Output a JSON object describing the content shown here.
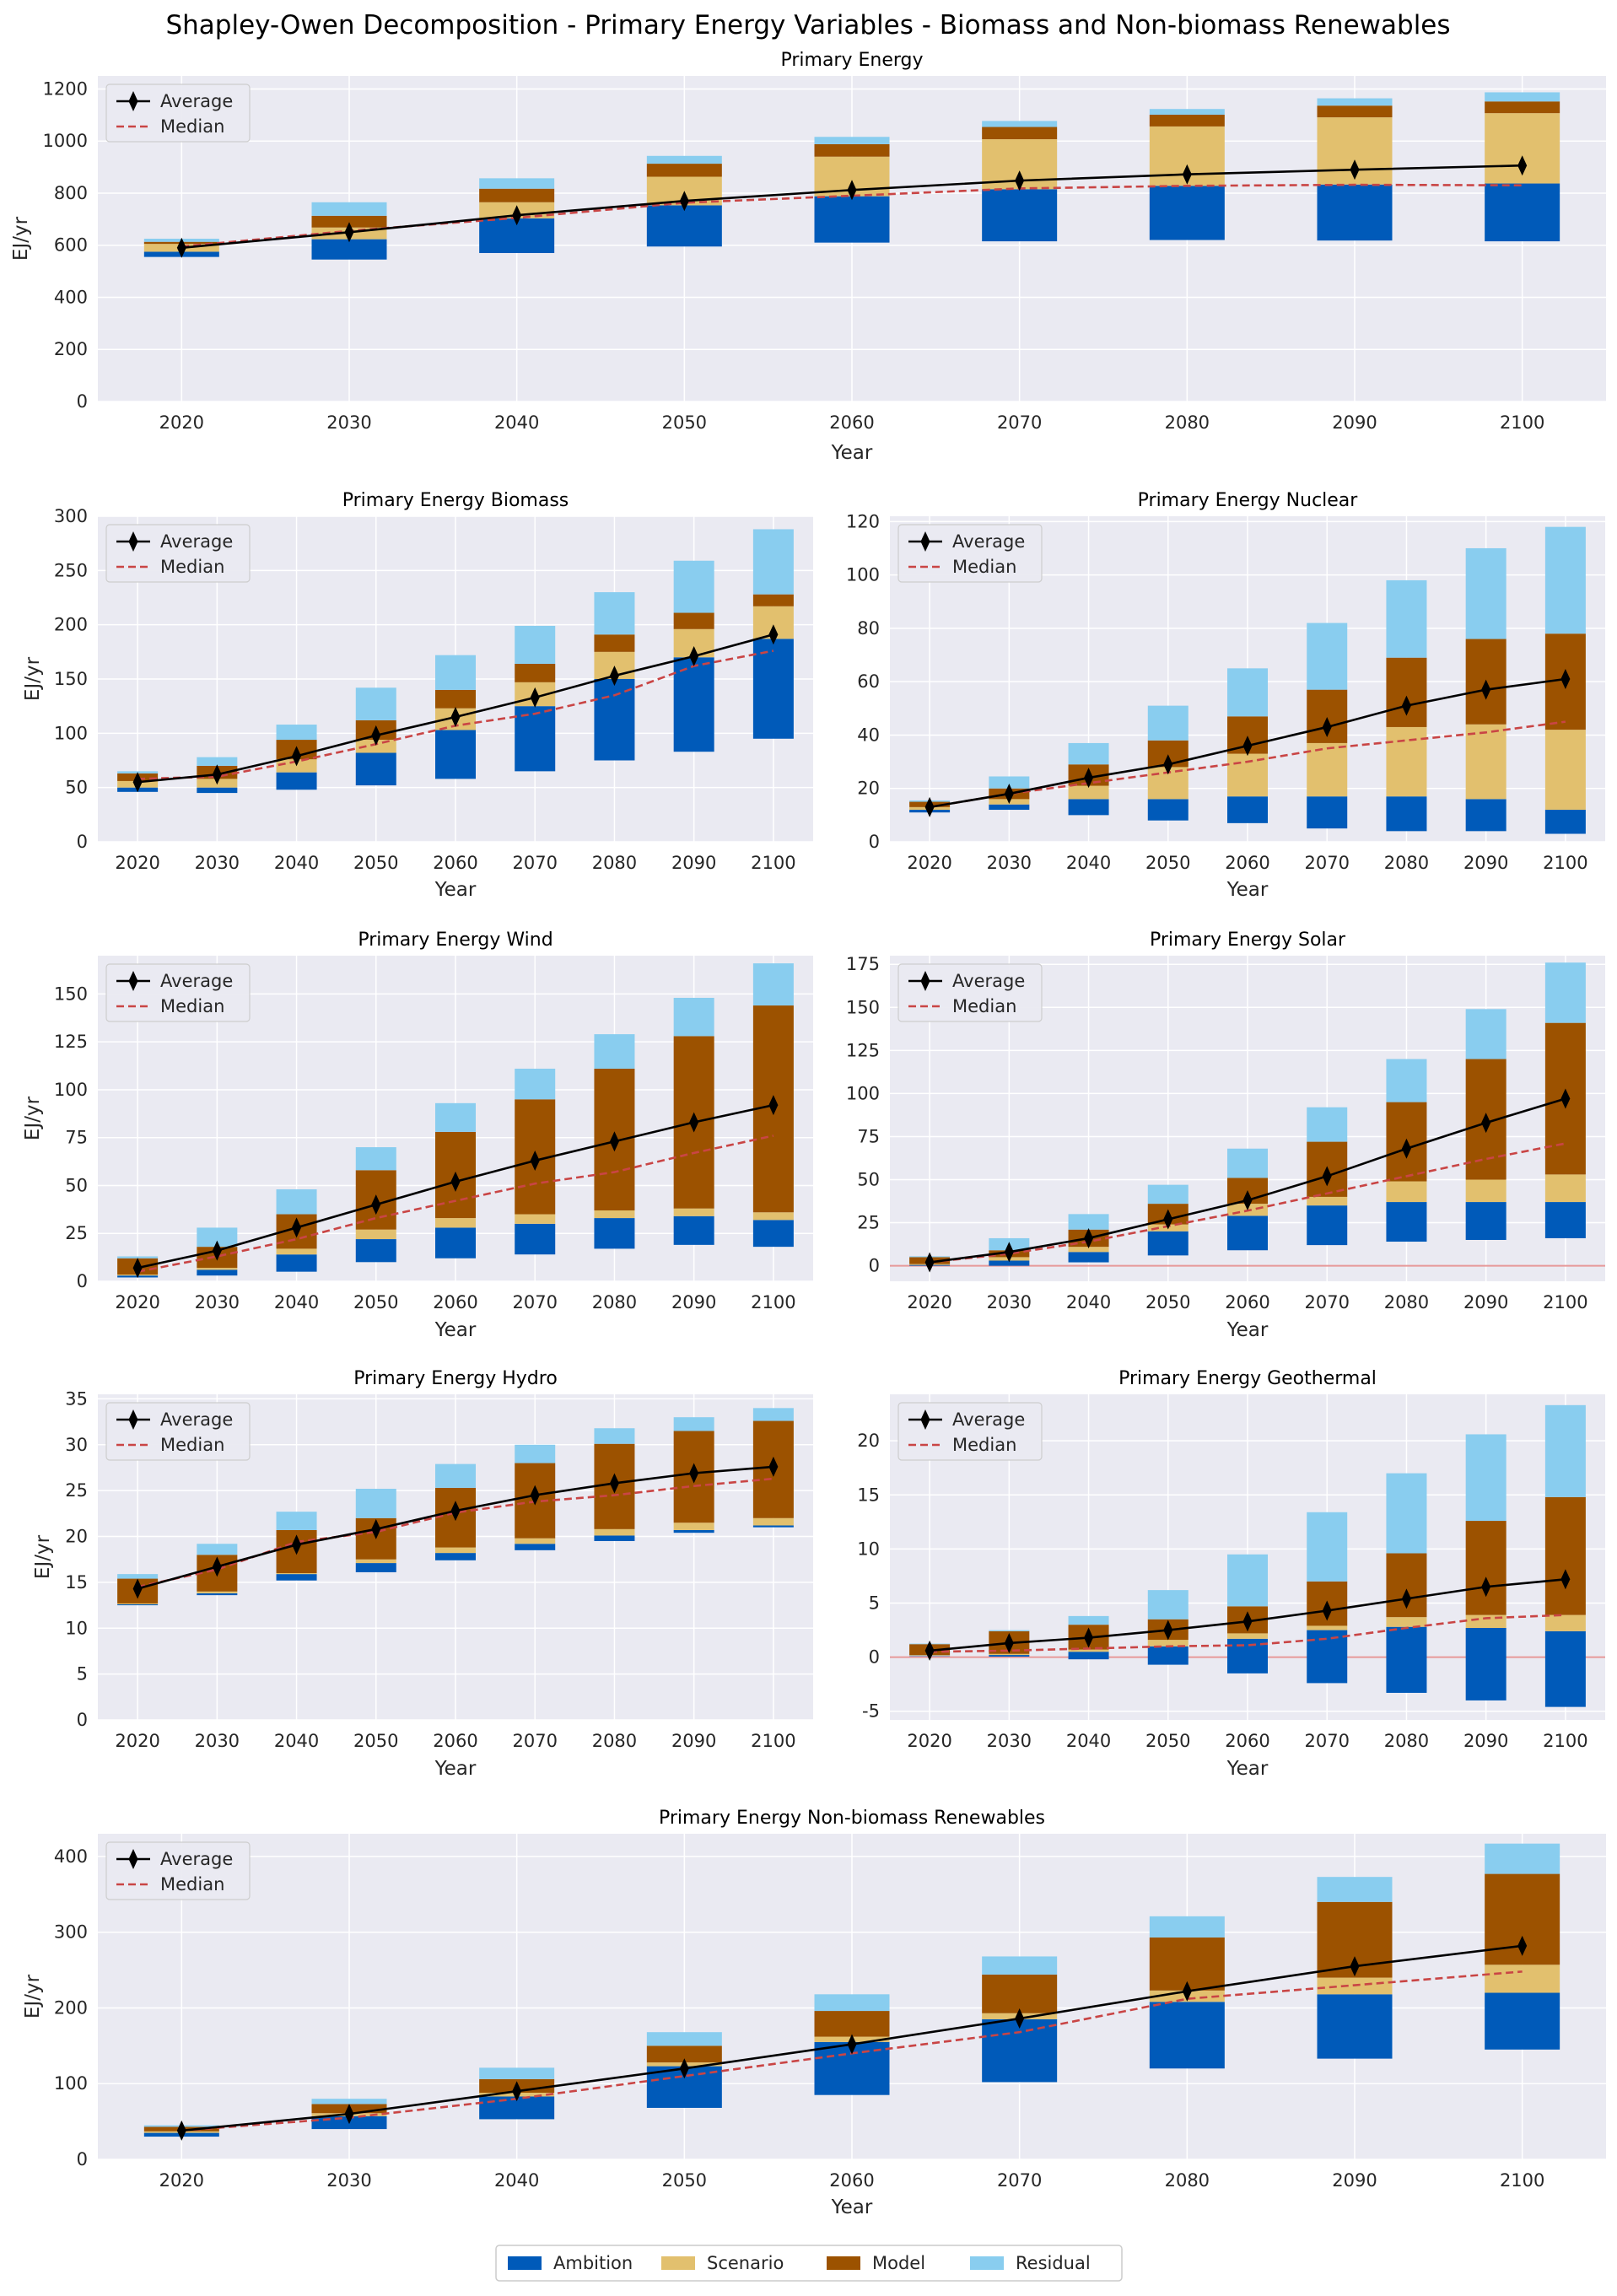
{
  "title": "Shapley-Owen Decomposition - Primary Energy Variables - Biomass and Non-biomass Renewables",
  "colors": {
    "Ambition": "#005ab9",
    "Scenario": "#e2c06e",
    "Model": "#9c5200",
    "Residual": "#89cdef",
    "average_line": "#000000",
    "median_line": "#c94545",
    "plot_bg": "#eaeaf2",
    "grid": "#ffffff",
    "zero_line": "#e79999"
  },
  "legend": {
    "average": "Average",
    "median": "Median",
    "components": [
      "Ambition",
      "Scenario",
      "Model",
      "Residual"
    ]
  },
  "chart_data": [
    {
      "id": "primary-energy",
      "type": "bar",
      "title": "Primary Energy",
      "xlabel": "Year",
      "ylabel": "EJ/yr",
      "categories": [
        "2020",
        "2030",
        "2040",
        "2050",
        "2060",
        "2070",
        "2080",
        "2090",
        "2100"
      ],
      "ylim": [
        0,
        1250
      ],
      "yticks": [
        0,
        200,
        400,
        600,
        800,
        1000,
        1200
      ],
      "zero_line": false,
      "legend_position": "top-left",
      "base": [
        555,
        545,
        570,
        595,
        610,
        615,
        620,
        618,
        615
      ],
      "series": [
        {
          "name": "Ambition",
          "values": [
            20,
            78,
            133,
            158,
            178,
            200,
            208,
            215,
            222
          ]
        },
        {
          "name": "Scenario",
          "values": [
            30,
            45,
            62,
            110,
            152,
            192,
            228,
            258,
            270
          ]
        },
        {
          "name": "Model",
          "values": [
            8,
            45,
            52,
            50,
            48,
            47,
            45,
            45,
            45
          ]
        },
        {
          "name": "Residual",
          "values": [
            12,
            52,
            40,
            30,
            28,
            23,
            22,
            28,
            35
          ]
        }
      ],
      "average": [
        590,
        650,
        715,
        770,
        812,
        848,
        872,
        890,
        906
      ],
      "median": [
        595,
        655,
        705,
        763,
        790,
        818,
        828,
        832,
        830
      ]
    },
    {
      "id": "primary-energy-biomass",
      "type": "bar",
      "title": "Primary Energy Biomass",
      "xlabel": "Year",
      "ylabel": "EJ/yr",
      "categories": [
        "2020",
        "2030",
        "2040",
        "2050",
        "2060",
        "2070",
        "2080",
        "2090",
        "2100"
      ],
      "ylim": [
        0,
        300
      ],
      "yticks": [
        0,
        50,
        100,
        150,
        200,
        250,
        300
      ],
      "zero_line": false,
      "legend_position": "top-left",
      "base": [
        46,
        45,
        48,
        52,
        58,
        65,
        75,
        83,
        95
      ],
      "series": [
        {
          "name": "Ambition",
          "values": [
            4,
            5,
            16,
            30,
            45,
            60,
            75,
            87,
            92
          ]
        },
        {
          "name": "Scenario",
          "values": [
            6,
            8,
            12,
            12,
            20,
            22,
            25,
            26,
            30
          ]
        },
        {
          "name": "Model",
          "values": [
            7,
            12,
            18,
            18,
            17,
            17,
            16,
            15,
            11
          ]
        },
        {
          "name": "Residual",
          "values": [
            2,
            8,
            14,
            30,
            32,
            35,
            39,
            48,
            60
          ]
        }
      ],
      "average": [
        55,
        62,
        79,
        98,
        115,
        133,
        153,
        171,
        191
      ],
      "median": [
        58,
        60,
        74,
        90,
        107,
        118,
        135,
        162,
        176
      ]
    },
    {
      "id": "primary-energy-nuclear",
      "type": "bar",
      "title": "Primary Energy Nuclear",
      "xlabel": "Year",
      "ylabel": "",
      "categories": [
        "2020",
        "2030",
        "2040",
        "2050",
        "2060",
        "2070",
        "2080",
        "2090",
        "2100"
      ],
      "ylim": [
        0,
        122
      ],
      "yticks": [
        0,
        20,
        40,
        60,
        80,
        100,
        120
      ],
      "zero_line": false,
      "legend_position": "top-left",
      "base": [
        11,
        12,
        10,
        8,
        7,
        5,
        4,
        4,
        3
      ],
      "series": [
        {
          "name": "Ambition",
          "values": [
            1,
            2,
            6,
            8,
            10,
            12,
            13,
            12,
            9
          ]
        },
        {
          "name": "Scenario",
          "values": [
            1,
            2,
            5,
            12,
            16,
            20,
            26,
            28,
            30
          ]
        },
        {
          "name": "Model",
          "values": [
            2,
            4,
            8,
            10,
            14,
            20,
            26,
            32,
            36
          ]
        },
        {
          "name": "Residual",
          "values": [
            0.5,
            4.5,
            8,
            13,
            18,
            25,
            29,
            34,
            40
          ]
        }
      ],
      "average": [
        13,
        18,
        24,
        29,
        36,
        43,
        51,
        57,
        61
      ],
      "median": [
        13,
        18,
        22,
        26,
        30,
        35,
        38,
        41,
        45
      ]
    },
    {
      "id": "primary-energy-wind",
      "type": "bar",
      "title": "Primary Energy Wind",
      "xlabel": "Year",
      "ylabel": "EJ/yr",
      "categories": [
        "2020",
        "2030",
        "2040",
        "2050",
        "2060",
        "2070",
        "2080",
        "2090",
        "2100"
      ],
      "ylim": [
        0,
        170
      ],
      "yticks": [
        0,
        25,
        50,
        75,
        100,
        125,
        150
      ],
      "zero_line": false,
      "legend_position": "top-left",
      "base": [
        2,
        3,
        5,
        10,
        12,
        14,
        17,
        19,
        18
      ],
      "series": [
        {
          "name": "Ambition",
          "values": [
            1,
            3,
            9,
            12,
            16,
            16,
            16,
            15,
            14
          ]
        },
        {
          "name": "Scenario",
          "values": [
            0.5,
            1,
            3,
            5,
            5,
            5,
            4,
            4,
            4
          ]
        },
        {
          "name": "Model",
          "values": [
            8.5,
            11,
            18,
            31,
            45,
            60,
            74,
            90,
            108
          ]
        },
        {
          "name": "Residual",
          "values": [
            1,
            10,
            13,
            12,
            15,
            16,
            18,
            20,
            22
          ]
        }
      ],
      "average": [
        7,
        16,
        28,
        40,
        52,
        63,
        73,
        83,
        92
      ],
      "median": [
        5,
        13,
        22,
        33,
        42,
        51,
        57,
        67,
        76
      ]
    },
    {
      "id": "primary-energy-solar",
      "type": "bar",
      "title": "Primary Energy Solar",
      "xlabel": "Year",
      "ylabel": "",
      "categories": [
        "2020",
        "2030",
        "2040",
        "2050",
        "2060",
        "2070",
        "2080",
        "2090",
        "2100"
      ],
      "ylim": [
        -9,
        180
      ],
      "yticks": [
        0,
        25,
        50,
        75,
        100,
        125,
        150,
        175
      ],
      "zero_line": true,
      "legend_position": "top-left",
      "base": [
        0,
        0,
        2,
        6,
        9,
        12,
        14,
        15,
        16
      ],
      "series": [
        {
          "name": "Ambition",
          "values": [
            0.5,
            3,
            6,
            14,
            20,
            23,
            23,
            22,
            21
          ]
        },
        {
          "name": "Scenario",
          "values": [
            0.5,
            2,
            3,
            4,
            7,
            5,
            12,
            13,
            16
          ]
        },
        {
          "name": "Model",
          "values": [
            4,
            4,
            10,
            12,
            15,
            32,
            46,
            70,
            88
          ]
        },
        {
          "name": "Residual",
          "values": [
            0.5,
            7,
            9,
            11,
            17,
            20,
            25,
            29,
            35
          ]
        }
      ],
      "average": [
        2,
        8,
        16,
        27,
        38,
        52,
        68,
        83,
        97
      ],
      "median": [
        2,
        7,
        14,
        23,
        32,
        42,
        52,
        62,
        71
      ]
    },
    {
      "id": "primary-energy-hydro",
      "type": "bar",
      "title": "Primary Energy Hydro",
      "xlabel": "Year",
      "ylabel": "EJ/yr",
      "categories": [
        "2020",
        "2030",
        "2040",
        "2050",
        "2060",
        "2070",
        "2080",
        "2090",
        "2100"
      ],
      "ylim": [
        0,
        35.5
      ],
      "yticks": [
        0,
        5,
        10,
        15,
        20,
        25,
        30,
        35
      ],
      "zero_line": false,
      "legend_position": "top-left",
      "base": [
        12.5,
        13.6,
        15.2,
        16.1,
        17.4,
        18.5,
        19.5,
        20.4,
        21
      ],
      "series": [
        {
          "name": "Ambition",
          "values": [
            0.1,
            0.2,
            0.7,
            1,
            0.8,
            0.7,
            0.6,
            0.3,
            0.2
          ]
        },
        {
          "name": "Scenario",
          "values": [
            0.1,
            0.2,
            0.1,
            0.4,
            0.6,
            0.6,
            0.7,
            0.8,
            0.8
          ]
        },
        {
          "name": "Model",
          "values": [
            2.7,
            4.0,
            4.7,
            4.5,
            6.5,
            8.2,
            9.3,
            10.0,
            10.6
          ]
        },
        {
          "name": "Residual",
          "values": [
            0.5,
            1.2,
            2.0,
            3.2,
            2.6,
            2.0,
            1.7,
            1.5,
            1.4
          ]
        }
      ],
      "average": [
        14.3,
        16.7,
        19.1,
        20.8,
        22.8,
        24.5,
        25.8,
        26.9,
        27.6
      ],
      "median": [
        14.5,
        16.4,
        19.4,
        20.5,
        22.6,
        23.8,
        24.5,
        25.5,
        26.3
      ]
    },
    {
      "id": "primary-energy-geothermal",
      "type": "bar",
      "title": "Primary Energy Geothermal",
      "xlabel": "Year",
      "ylabel": "",
      "categories": [
        "2020",
        "2030",
        "2040",
        "2050",
        "2060",
        "2070",
        "2080",
        "2090",
        "2100"
      ],
      "ylim": [
        -5.8,
        24.3
      ],
      "yticks": [
        -5,
        0,
        5,
        10,
        15,
        20
      ],
      "zero_line": true,
      "legend_position": "top-left",
      "base": [
        0.1,
        0.05,
        -0.2,
        -0.7,
        -1.5,
        -2.4,
        -3.3,
        -4.0,
        -4.6
      ],
      "series": [
        {
          "name": "Ambition",
          "values": [
            0.05,
            0.15,
            0.7,
            1.7,
            3.2,
            4.9,
            6.1,
            6.7,
            7.0
          ]
        },
        {
          "name": "Scenario",
          "values": [
            0.05,
            0.1,
            0.2,
            0.6,
            0.5,
            0.4,
            0.9,
            1.2,
            1.5
          ]
        },
        {
          "name": "Model",
          "values": [
            1.0,
            2.1,
            2.3,
            1.9,
            2.5,
            4.1,
            5.9,
            8.7,
            10.9
          ]
        },
        {
          "name": "Residual",
          "values": [
            0.05,
            0.1,
            0.8,
            2.7,
            4.8,
            6.4,
            7.4,
            8.0,
            8.5
          ]
        }
      ],
      "average": [
        0.6,
        1.3,
        1.8,
        2.5,
        3.3,
        4.3,
        5.4,
        6.5,
        7.2
      ],
      "median": [
        0.5,
        0.6,
        0.8,
        1.0,
        1.1,
        1.7,
        2.7,
        3.6,
        3.9
      ]
    },
    {
      "id": "primary-energy-non-biomass-renewables",
      "type": "bar",
      "title": "Primary Energy Non-biomass Renewables",
      "xlabel": "Year",
      "ylabel": "EJ/yr",
      "categories": [
        "2020",
        "2030",
        "2040",
        "2050",
        "2060",
        "2070",
        "2080",
        "2090",
        "2100"
      ],
      "ylim": [
        0,
        430
      ],
      "yticks": [
        0,
        100,
        200,
        300,
        400
      ],
      "zero_line": false,
      "legend_position": "top-left",
      "base": [
        30,
        40,
        53,
        68,
        85,
        102,
        120,
        133,
        145
      ],
      "series": [
        {
          "name": "Ambition",
          "values": [
            5,
            17,
            30,
            55,
            70,
            83,
            88,
            85,
            75
          ]
        },
        {
          "name": "Scenario",
          "values": [
            2,
            4,
            5,
            5,
            7,
            8,
            15,
            22,
            37
          ]
        },
        {
          "name": "Model",
          "values": [
            6,
            12,
            18,
            22,
            34,
            51,
            70,
            100,
            120
          ]
        },
        {
          "name": "Residual",
          "values": [
            2,
            7,
            15,
            18,
            22,
            24,
            28,
            33,
            40
          ]
        }
      ],
      "average": [
        38,
        60,
        90,
        120,
        152,
        186,
        222,
        255,
        282
      ],
      "median": [
        38,
        55,
        80,
        110,
        140,
        168,
        212,
        230,
        248
      ]
    }
  ]
}
